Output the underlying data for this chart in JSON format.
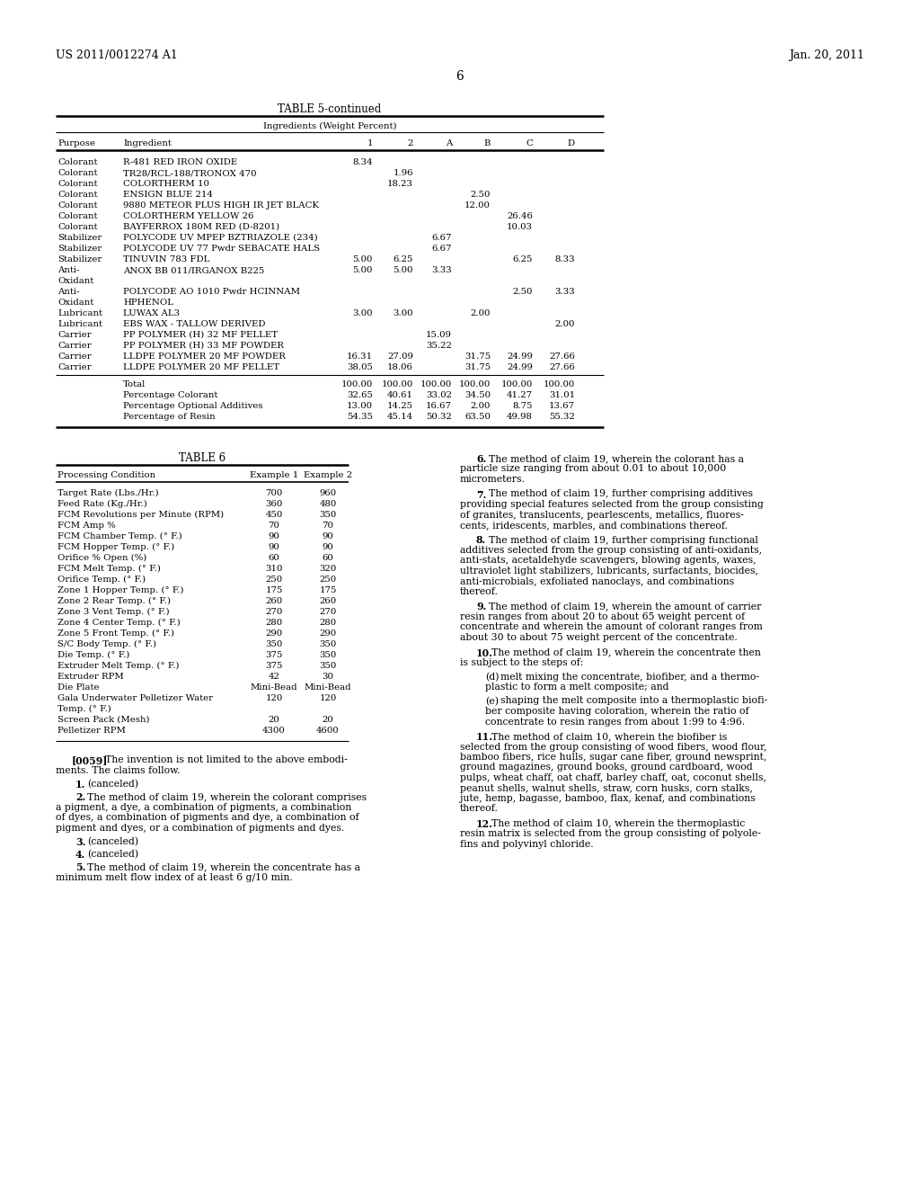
{
  "header_left": "US 2011/0012274 A1",
  "header_right": "Jan. 20, 2011",
  "page_number": "6",
  "table5_title": "TABLE 5-continued",
  "table5_subtitle": "Ingredients (Weight Percent)",
  "table5_rows": [
    [
      "Colorant",
      "R-481 RED IRON OXIDE",
      "8.34",
      "",
      "",
      "",
      "",
      ""
    ],
    [
      "Colorant",
      "TR28/RCL-188/TRONOX 470",
      "",
      "1.96",
      "",
      "",
      "",
      ""
    ],
    [
      "Colorant",
      "COLORTHERM 10",
      "",
      "18.23",
      "",
      "",
      "",
      ""
    ],
    [
      "Colorant",
      "ENSIGN BLUE 214",
      "",
      "",
      "",
      "2.50",
      "",
      ""
    ],
    [
      "Colorant",
      "9880 METEOR PLUS HIGH IR JET BLACK",
      "",
      "",
      "",
      "12.00",
      "",
      ""
    ],
    [
      "Colorant",
      "COLORTHERM YELLOW 26",
      "",
      "",
      "",
      "",
      "26.46",
      ""
    ],
    [
      "Colorant",
      "BAYFERROX 180M RED (D-8201)",
      "",
      "",
      "",
      "",
      "10.03",
      ""
    ],
    [
      "Stabilizer",
      "POLYCODE UV MPEP BZTRIAZOLE (234)",
      "",
      "",
      "6.67",
      "",
      "",
      ""
    ],
    [
      "Stabilizer",
      "POLYCODE UV 77 Pwdr SEBACATE HALS",
      "",
      "",
      "6.67",
      "",
      "",
      ""
    ],
    [
      "Stabilizer",
      "TINUVIN 783 FDL",
      "5.00",
      "6.25",
      "",
      "",
      "6.25",
      "8.33"
    ],
    [
      "Anti-",
      "ANOX BB 011/IRGANOX B225",
      "5.00",
      "5.00",
      "3.33",
      "",
      "",
      ""
    ],
    [
      "Oxidant",
      "",
      "",
      "",
      "",
      "",
      "",
      ""
    ],
    [
      "Anti-",
      "POLYCODE AO 1010 Pwdr HCINNAM",
      "",
      "",
      "",
      "",
      "2.50",
      "3.33"
    ],
    [
      "Oxidant",
      "HPHENOL",
      "",
      "",
      "",
      "",
      "",
      ""
    ],
    [
      "Lubricant",
      "LUWAX AL3",
      "3.00",
      "3.00",
      "",
      "2.00",
      "",
      ""
    ],
    [
      "Lubricant",
      "EBS WAX - TALLOW DERIVED",
      "",
      "",
      "",
      "",
      "",
      "2.00"
    ],
    [
      "Carrier",
      "PP POLYMER (H) 32 MF PELLET",
      "",
      "",
      "15.09",
      "",
      "",
      ""
    ],
    [
      "Carrier",
      "PP POLYMER (H) 33 MF POWDER",
      "",
      "",
      "35.22",
      "",
      "",
      ""
    ],
    [
      "Carrier",
      "LLDPE POLYMER 20 MF POWDER",
      "16.31",
      "27.09",
      "",
      "31.75",
      "24.99",
      "27.66"
    ],
    [
      "Carrier",
      "LLDPE POLYMER 20 MF PELLET",
      "38.05",
      "18.06",
      "",
      "31.75",
      "24.99",
      "27.66"
    ]
  ],
  "table5_totals": [
    [
      "",
      "Total",
      "100.00",
      "100.00",
      "100.00",
      "100.00",
      "100.00",
      "100.00"
    ],
    [
      "",
      "Percentage Colorant",
      "32.65",
      "40.61",
      "33.02",
      "34.50",
      "41.27",
      "31.01"
    ],
    [
      "",
      "Percentage Optional Additives",
      "13.00",
      "14.25",
      "16.67",
      "2.00",
      "8.75",
      "13.67"
    ],
    [
      "",
      "Percentage of Resin",
      "54.35",
      "45.14",
      "50.32",
      "63.50",
      "49.98",
      "55.32"
    ]
  ],
  "table6_title": "TABLE 6",
  "table6_rows": [
    [
      "Target Rate (Lbs./Hr.)",
      "700",
      "960"
    ],
    [
      "Feed Rate (Kg./Hr.)",
      "360",
      "480"
    ],
    [
      "FCM Revolutions per Minute (RPM)",
      "450",
      "350"
    ],
    [
      "FCM Amp %",
      "70",
      "70"
    ],
    [
      "FCM Chamber Temp. (° F.)",
      "90",
      "90"
    ],
    [
      "FCM Hopper Temp. (° F.)",
      "90",
      "90"
    ],
    [
      "Orifice % Open (%)",
      "60",
      "60"
    ],
    [
      "FCM Melt Temp. (° F.)",
      "310",
      "320"
    ],
    [
      "Orifice Temp. (° F.)",
      "250",
      "250"
    ],
    [
      "Zone 1 Hopper Temp. (° F.)",
      "175",
      "175"
    ],
    [
      "Zone 2 Rear Temp. (° F.)",
      "260",
      "260"
    ],
    [
      "Zone 3 Vent Temp. (° F.)",
      "270",
      "270"
    ],
    [
      "Zone 4 Center Temp. (° F.)",
      "280",
      "280"
    ],
    [
      "Zone 5 Front Temp. (° F.)",
      "290",
      "290"
    ],
    [
      "S/C Body Temp. (° F.)",
      "350",
      "350"
    ],
    [
      "Die Temp. (° F.)",
      "375",
      "350"
    ],
    [
      "Extruder Melt Temp. (° F.)",
      "375",
      "350"
    ],
    [
      "Extruder RPM",
      "42",
      "30"
    ],
    [
      "Die Plate",
      "Mini-Bead",
      "Mini-Bead"
    ],
    [
      "Gala Underwater Pelletizer Water",
      "120",
      "120"
    ],
    [
      "Temp. (° F.)",
      "",
      ""
    ],
    [
      "Screen Pack (Mesh)",
      "20",
      "20"
    ],
    [
      "Pelletizer RPM",
      "4300",
      "4600"
    ]
  ],
  "bg_color": "#ffffff",
  "text_color": "#000000"
}
